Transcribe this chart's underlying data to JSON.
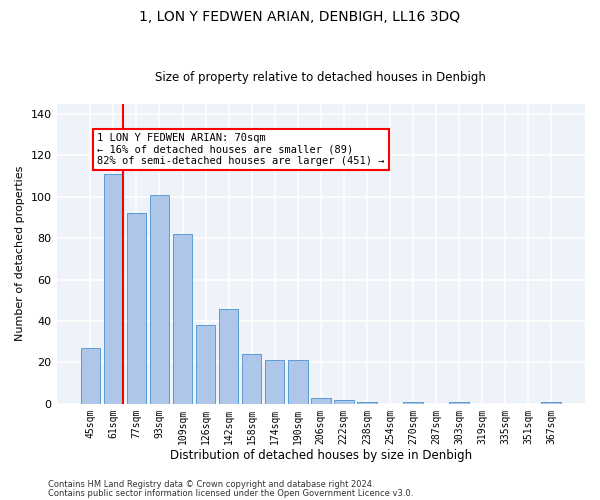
{
  "title": "1, LON Y FEDWEN ARIAN, DENBIGH, LL16 3DQ",
  "subtitle": "Size of property relative to detached houses in Denbigh",
  "xlabel": "Distribution of detached houses by size in Denbigh",
  "ylabel": "Number of detached properties",
  "bar_labels": [
    "45sqm",
    "61sqm",
    "77sqm",
    "93sqm",
    "109sqm",
    "126sqm",
    "142sqm",
    "158sqm",
    "174sqm",
    "190sqm",
    "206sqm",
    "222sqm",
    "238sqm",
    "254sqm",
    "270sqm",
    "287sqm",
    "303sqm",
    "319sqm",
    "335sqm",
    "351sqm",
    "367sqm"
  ],
  "bar_values": [
    27,
    111,
    92,
    101,
    82,
    38,
    46,
    24,
    21,
    21,
    3,
    2,
    1,
    0,
    1,
    0,
    1,
    0,
    0,
    0,
    1
  ],
  "bar_color": "#aec6e8",
  "bar_edge_color": "#5b9bd5",
  "vline_x_idx": 1,
  "vline_color": "red",
  "annotation_text": "1 LON Y FEDWEN ARIAN: 70sqm\n← 16% of detached houses are smaller (89)\n82% of semi-detached houses are larger (451) →",
  "annotation_box_color": "white",
  "annotation_box_edge_color": "red",
  "ylim": [
    0,
    145
  ],
  "yticks": [
    0,
    20,
    40,
    60,
    80,
    100,
    120,
    140
  ],
  "footer_line1": "Contains HM Land Registry data © Crown copyright and database right 2024.",
  "footer_line2": "Contains public sector information licensed under the Open Government Licence v3.0.",
  "background_color": "#eef2f9",
  "grid_color": "white",
  "title_fontsize": 10,
  "subtitle_fontsize": 8.5,
  "ylabel_fontsize": 8,
  "xlabel_fontsize": 8.5,
  "tick_fontsize": 7,
  "annotation_fontsize": 7.5,
  "footer_fontsize": 6
}
